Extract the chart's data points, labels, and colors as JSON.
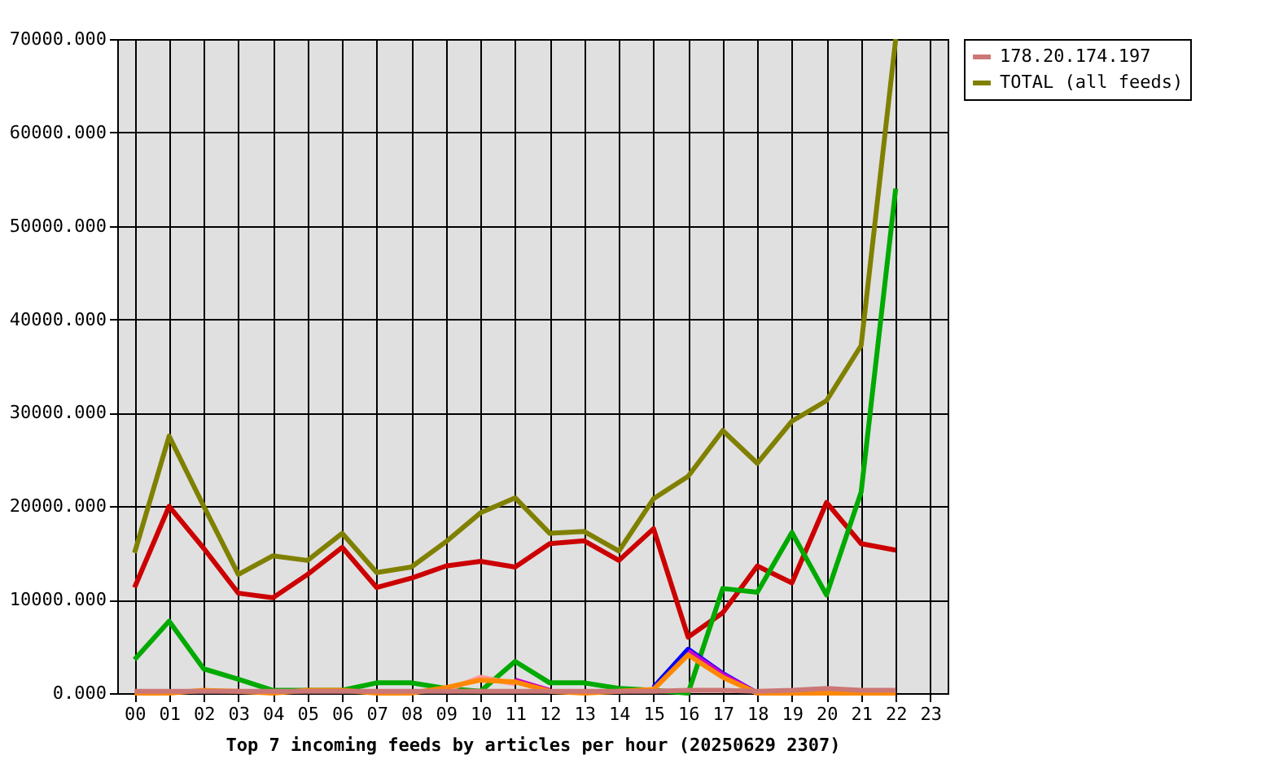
{
  "chart_data": {
    "type": "line",
    "xlabel": "Top 7 incoming feeds by articles per hour (20250629 2307)",
    "categories": [
      "00",
      "01",
      "02",
      "03",
      "04",
      "05",
      "06",
      "07",
      "08",
      "09",
      "10",
      "11",
      "12",
      "13",
      "14",
      "15",
      "16",
      "17",
      "18",
      "19",
      "20",
      "21",
      "22",
      "23"
    ],
    "ylim": [
      0,
      70000
    ],
    "yticks": [
      {
        "value": 0,
        "label": "0.000"
      },
      {
        "value": 10000,
        "label": "10000.000"
      },
      {
        "value": 20000,
        "label": "20000.000"
      },
      {
        "value": 30000,
        "label": "30000.000"
      },
      {
        "value": 40000,
        "label": "40000.000"
      },
      {
        "value": 50000,
        "label": "50000.000"
      },
      {
        "value": 60000,
        "label": "60000.000"
      },
      {
        "value": 70000,
        "label": "70000.000"
      }
    ],
    "grid": true,
    "legend": "top right",
    "marker": "none",
    "line_style": "solid",
    "series": [
      {
        "color": "#cc0000",
        "values": [
          11300,
          20000,
          15500,
          10700,
          10200,
          12700,
          15600,
          11300,
          12300,
          13600,
          14100,
          13500,
          16000,
          16300,
          14200,
          17600,
          6000,
          8600,
          13600,
          11800,
          20400,
          16000,
          15300,
          null
        ]
      },
      {
        "color": "#00aa00",
        "values": [
          3600,
          7700,
          2600,
          1500,
          300,
          300,
          300,
          1100,
          1100,
          500,
          200,
          3400,
          1100,
          1100,
          500,
          300,
          0,
          11200,
          10800,
          17200,
          10500,
          21500,
          54000,
          null
        ]
      },
      {
        "color": "#0000ff",
        "values": [
          null,
          null,
          null,
          null,
          null,
          null,
          null,
          null,
          null,
          null,
          null,
          null,
          null,
          null,
          null,
          600,
          4700,
          2100,
          0,
          null,
          null,
          null,
          null,
          null
        ]
      },
      {
        "color": "#cc00cc",
        "values": [
          null,
          null,
          null,
          null,
          null,
          null,
          null,
          null,
          null,
          null,
          null,
          1400,
          300,
          null,
          null,
          null,
          4500,
          2000,
          0,
          null,
          null,
          null,
          null,
          null
        ]
      },
      {
        "color": "#ff9999",
        "values": [
          null,
          null,
          null,
          null,
          null,
          null,
          null,
          null,
          null,
          300,
          1700,
          1000,
          null,
          null,
          null,
          null,
          null,
          null,
          null,
          null,
          null,
          null,
          null,
          null
        ]
      },
      {
        "color": "#ff8800",
        "values": [
          0,
          0,
          300,
          200,
          0,
          300,
          300,
          0,
          0,
          600,
          1400,
          1200,
          200,
          0,
          200,
          400,
          4100,
          1700,
          0,
          0,
          0,
          0,
          0,
          null
        ]
      },
      {
        "name": "178.20.174.197",
        "color": "#cc7777",
        "values": [
          200,
          200,
          200,
          200,
          200,
          200,
          200,
          200,
          200,
          200,
          200,
          200,
          200,
          200,
          200,
          200,
          300,
          300,
          200,
          300,
          500,
          300,
          300,
          null
        ]
      },
      {
        "name": "TOTAL (all feeds)",
        "color": "#808000",
        "values": [
          15000,
          27500,
          20000,
          12700,
          14700,
          14200,
          17100,
          12900,
          13500,
          16200,
          19300,
          20900,
          17100,
          17300,
          15200,
          20800,
          23200,
          28100,
          24600,
          29100,
          31300,
          37200,
          70000,
          null
        ]
      }
    ]
  }
}
